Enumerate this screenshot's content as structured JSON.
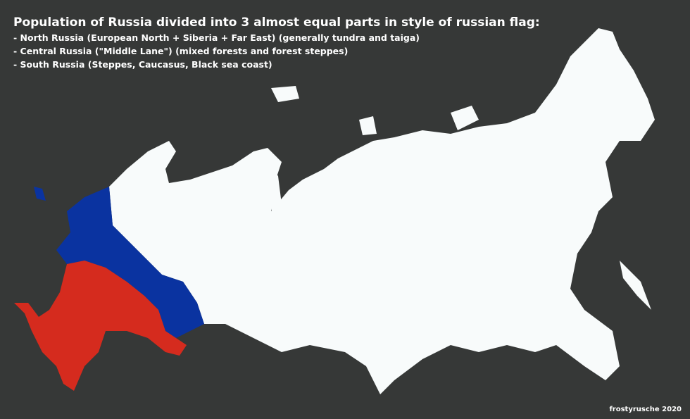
{
  "header": {
    "title": "Population of Russia divided into 3 almost equal parts in style of russian flag:",
    "lines": [
      "- North Russia (European North + Siberia + Far East) (generally tundra and taiga)",
      "- Central Russia (\"Middle Lane\") (mixed forests and forest steppes)",
      "- South Russia (Steppes, Caucasus, Black sea coast)"
    ]
  },
  "credit": "frostyrusche 2020"
}
